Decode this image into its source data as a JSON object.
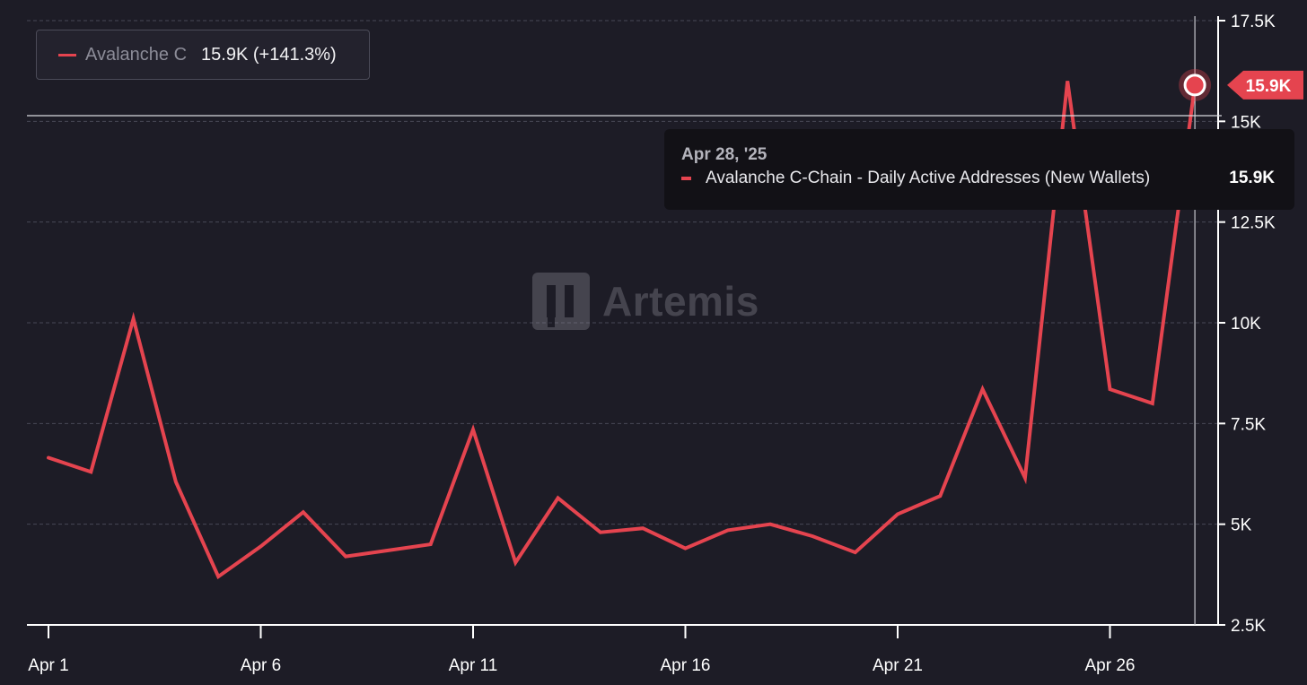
{
  "legend": {
    "series_name": "Avalanche C",
    "value_text": "15.9K (+141.3%)"
  },
  "tooltip": {
    "date": "Apr 28, '25",
    "series": "Avalanche C-Chain - Daily Active Addresses (New Wallets)",
    "value": "15.9K"
  },
  "watermark": "Artemis",
  "colors": {
    "background": "#1d1c26",
    "series": "#e5444f",
    "grid": "#474756",
    "axis": "#ffffff",
    "tick_text": "#ffffff"
  },
  "chart_data": {
    "type": "line",
    "title": "",
    "xlabel": "",
    "ylabel": "",
    "x": [
      "Apr 1",
      "Apr 2",
      "Apr 3",
      "Apr 4",
      "Apr 5",
      "Apr 6",
      "Apr 7",
      "Apr 8",
      "Apr 9",
      "Apr 10",
      "Apr 11",
      "Apr 12",
      "Apr 13",
      "Apr 14",
      "Apr 15",
      "Apr 16",
      "Apr 17",
      "Apr 18",
      "Apr 19",
      "Apr 20",
      "Apr 21",
      "Apr 22",
      "Apr 23",
      "Apr 24",
      "Apr 25",
      "Apr 26",
      "Apr 27",
      "Apr 28"
    ],
    "series": [
      {
        "name": "Avalanche C-Chain - Daily Active Addresses (New Wallets)",
        "values": [
          6650,
          6300,
          10100,
          6050,
          3700,
          4450,
          5300,
          4200,
          4350,
          4500,
          7350,
          4050,
          5650,
          4800,
          4900,
          4400,
          4850,
          5000,
          4700,
          4300,
          5250,
          5700,
          8350,
          6150,
          16000,
          8350,
          8000,
          15900
        ]
      }
    ],
    "xticks": [
      "Apr 1",
      "Apr 6",
      "Apr 11",
      "Apr 16",
      "Apr 21",
      "Apr 26"
    ],
    "xtick_indices": [
      0,
      5,
      10,
      15,
      20,
      25
    ],
    "yticks": [
      2500,
      5000,
      7500,
      10000,
      12500,
      15000,
      17500
    ],
    "ytick_labels": [
      "2.5K",
      "5K",
      "7.5K",
      "10K",
      "12.5K",
      "15K",
      "17.5K"
    ],
    "ylim": [
      2500,
      17500
    ],
    "grid": "horizontal dashed",
    "y_axis_side": "right",
    "crosshair_index": 27,
    "current_value_label": "15.9K"
  }
}
